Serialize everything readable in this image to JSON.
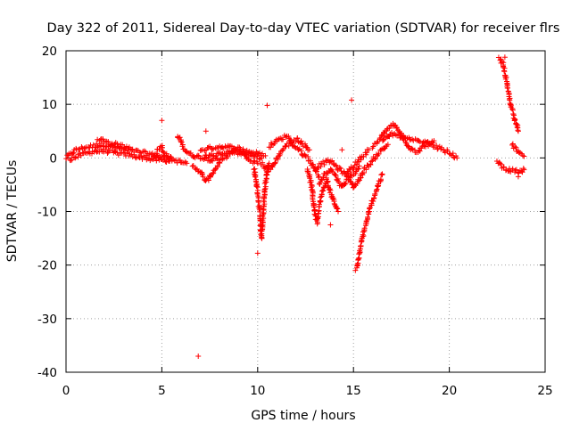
{
  "chart_data": {
    "type": "scatter",
    "title": "Day 322 of 2011, Sidereal Day-to-day VTEC variation (SDTVAR) for receiver flrs",
    "xlabel": "GPS time / hours",
    "ylabel": "SDTVAR / TECUs",
    "xlim": [
      0,
      25
    ],
    "ylim": [
      -40,
      20
    ],
    "xticks": [
      0,
      5,
      10,
      15,
      20,
      25
    ],
    "yticks": [
      -40,
      -30,
      -20,
      -10,
      0,
      10,
      20
    ],
    "xtick_labels": [
      "0",
      "5",
      "10",
      "15",
      "20",
      "25"
    ],
    "ytick_labels": [
      "-40",
      "-30",
      "-20",
      "-10",
      "0",
      "10",
      "20"
    ],
    "grid": true,
    "marker": "+",
    "series": [
      {
        "name": "SDTVAR",
        "color": "#ff0000",
        "tracks": [
          [
            [
              0.0,
              0.0
            ],
            [
              0.5,
              1.5
            ],
            [
              1.0,
              2.0
            ],
            [
              1.5,
              2.2
            ],
            [
              2.0,
              2.5
            ],
            [
              2.5,
              2.0
            ],
            [
              3.0,
              1.6
            ],
            [
              3.5,
              1.3
            ],
            [
              4.0,
              1.0
            ],
            [
              4.5,
              0.6
            ],
            [
              5.0,
              0.2
            ],
            [
              5.5,
              0.0
            ]
          ],
          [
            [
              0.2,
              -0.3
            ],
            [
              0.8,
              0.6
            ],
            [
              1.4,
              1.2
            ],
            [
              2.0,
              1.3
            ],
            [
              2.6,
              0.9
            ],
            [
              3.2,
              0.6
            ],
            [
              3.8,
              0.2
            ],
            [
              4.4,
              -0.2
            ],
            [
              5.0,
              -0.4
            ],
            [
              5.4,
              -0.6
            ]
          ],
          [
            [
              1.6,
              3.0
            ],
            [
              1.9,
              3.4
            ],
            [
              2.3,
              2.8
            ],
            [
              2.8,
              2.3
            ],
            [
              3.3,
              2.0
            ]
          ],
          [
            [
              4.6,
              0.5
            ],
            [
              4.8,
              1.5
            ],
            [
              5.0,
              2.2
            ],
            [
              5.1,
              1.0
            ],
            [
              5.3,
              0.3
            ],
            [
              5.6,
              -0.4
            ],
            [
              6.0,
              -0.8
            ],
            [
              6.3,
              -1.0
            ]
          ],
          [
            [
              5.8,
              4.0
            ],
            [
              6.0,
              3.2
            ],
            [
              6.2,
              1.5
            ],
            [
              6.5,
              0.6
            ],
            [
              6.8,
              0.3
            ],
            [
              7.2,
              0.0
            ],
            [
              7.6,
              -0.3
            ],
            [
              8.0,
              -0.4
            ]
          ],
          [
            [
              6.6,
              -1.5
            ],
            [
              7.0,
              -2.5
            ],
            [
              7.3,
              -4.5
            ],
            [
              7.6,
              -3.0
            ],
            [
              8.0,
              -1.0
            ],
            [
              8.4,
              0.5
            ],
            [
              8.8,
              1.4
            ],
            [
              9.2,
              0.9
            ],
            [
              9.6,
              -0.5
            ],
            [
              10.0,
              -1.0
            ]
          ],
          [
            [
              7.0,
              1.5
            ],
            [
              7.5,
              1.8
            ],
            [
              8.0,
              2.1
            ],
            [
              8.5,
              2.0
            ],
            [
              9.0,
              1.8
            ],
            [
              9.5,
              1.2
            ],
            [
              10.0,
              0.8
            ],
            [
              10.4,
              0.4
            ]
          ],
          [
            [
              7.2,
              0.3
            ],
            [
              7.8,
              0.6
            ],
            [
              8.4,
              1.2
            ],
            [
              9.0,
              1.0
            ],
            [
              9.6,
              0.5
            ],
            [
              10.2,
              0.0
            ]
          ],
          [
            [
              9.8,
              -2.0
            ],
            [
              10.0,
              -6.0
            ],
            [
              10.1,
              -10.0
            ],
            [
              10.15,
              -13.0
            ],
            [
              10.2,
              -15.0
            ],
            [
              10.25,
              -13.0
            ],
            [
              10.3,
              -10.0
            ],
            [
              10.35,
              -7.0
            ],
            [
              10.4,
              -5.0
            ],
            [
              10.5,
              -2.5
            ],
            [
              10.6,
              -1.0
            ]
          ],
          [
            [
              10.2,
              -1.0
            ],
            [
              10.5,
              -2.5
            ],
            [
              10.8,
              -1.5
            ],
            [
              11.1,
              0.5
            ],
            [
              11.4,
              2.0
            ],
            [
              11.7,
              2.8
            ],
            [
              12.0,
              2.0
            ],
            [
              12.3,
              1.0
            ],
            [
              12.6,
              0.0
            ],
            [
              12.9,
              -1.5
            ],
            [
              13.2,
              -3.5
            ]
          ],
          [
            [
              10.6,
              2.2
            ],
            [
              10.9,
              3.0
            ],
            [
              11.2,
              3.5
            ],
            [
              11.5,
              4.2
            ],
            [
              11.8,
              3.0
            ],
            [
              12.1,
              3.5
            ],
            [
              12.4,
              2.5
            ],
            [
              12.7,
              1.5
            ]
          ],
          [
            [
              12.6,
              -2.0
            ],
            [
              12.8,
              -5.0
            ],
            [
              12.9,
              -8.0
            ],
            [
              13.0,
              -10.5
            ],
            [
              13.1,
              -12.0
            ],
            [
              13.2,
              -9.0
            ],
            [
              13.4,
              -6.0
            ],
            [
              13.6,
              -4.0
            ],
            [
              13.8,
              -6.5
            ],
            [
              14.0,
              -8.5
            ],
            [
              14.2,
              -10.0
            ]
          ],
          [
            [
              13.2,
              -5.0
            ],
            [
              13.5,
              -3.0
            ],
            [
              13.8,
              -2.0
            ],
            [
              14.1,
              -3.5
            ],
            [
              14.4,
              -5.5
            ],
            [
              14.7,
              -4.0
            ],
            [
              15.0,
              -3.0
            ],
            [
              15.3,
              -1.5
            ]
          ],
          [
            [
              13.0,
              -2.0
            ],
            [
              13.4,
              -1.0
            ],
            [
              13.8,
              -0.5
            ],
            [
              14.2,
              -2.0
            ],
            [
              14.6,
              -3.0
            ],
            [
              15.0,
              -1.5
            ],
            [
              15.4,
              0.0
            ],
            [
              15.8,
              1.5
            ]
          ],
          [
            [
              14.6,
              -3.0
            ],
            [
              15.0,
              -5.5
            ],
            [
              15.3,
              -4.0
            ],
            [
              15.6,
              -2.0
            ],
            [
              15.9,
              -1.0
            ],
            [
              16.2,
              0.5
            ],
            [
              16.5,
              1.5
            ],
            [
              16.8,
              2.5
            ]
          ],
          [
            [
              15.2,
              -20.5
            ],
            [
              15.3,
              -18.0
            ],
            [
              15.45,
              -15.0
            ],
            [
              15.6,
              -13.0
            ],
            [
              15.75,
              -11.0
            ],
            [
              15.9,
              -9.0
            ],
            [
              16.05,
              -7.5
            ],
            [
              16.2,
              -6.0
            ],
            [
              16.35,
              -4.5
            ],
            [
              16.5,
              -3.0
            ]
          ],
          [
            [
              16.0,
              2.0
            ],
            [
              16.4,
              3.5
            ],
            [
              16.8,
              5.5
            ],
            [
              17.1,
              6.2
            ],
            [
              17.4,
              4.8
            ],
            [
              17.7,
              3.0
            ],
            [
              18.0,
              1.8
            ],
            [
              18.3,
              1.2
            ],
            [
              18.6,
              2.0
            ],
            [
              18.9,
              2.8
            ],
            [
              19.2,
              3.2
            ]
          ],
          [
            [
              16.5,
              3.0
            ],
            [
              17.0,
              4.5
            ],
            [
              17.5,
              4.0
            ],
            [
              18.0,
              3.3
            ],
            [
              18.5,
              3.0
            ],
            [
              19.0,
              2.5
            ],
            [
              19.5,
              1.8
            ],
            [
              20.0,
              1.0
            ],
            [
              20.4,
              0.0
            ]
          ],
          [
            [
              22.6,
              18.5
            ],
            [
              22.8,
              17.5
            ],
            [
              23.0,
              14.0
            ],
            [
              23.2,
              10.0
            ],
            [
              23.4,
              7.5
            ],
            [
              23.6,
              5.0
            ]
          ],
          [
            [
              23.3,
              2.5
            ],
            [
              23.5,
              1.5
            ],
            [
              23.7,
              0.6
            ],
            [
              23.9,
              0.3
            ]
          ],
          [
            [
              22.5,
              -0.5
            ],
            [
              22.8,
              -1.8
            ],
            [
              23.1,
              -2.2
            ],
            [
              23.4,
              -2.5
            ],
            [
              23.7,
              -2.6
            ],
            [
              23.9,
              -2.2
            ]
          ]
        ],
        "outliers": [
          [
            6.9,
            -37.0
          ],
          [
            5.0,
            7.0
          ],
          [
            10.5,
            9.8
          ],
          [
            14.9,
            10.8
          ],
          [
            10.0,
            -17.8
          ],
          [
            7.3,
            5.0
          ],
          [
            14.4,
            1.5
          ],
          [
            13.8,
            -12.5
          ],
          [
            15.1,
            -21.0
          ],
          [
            23.6,
            -3.5
          ],
          [
            22.9,
            18.8
          ]
        ]
      }
    ]
  }
}
